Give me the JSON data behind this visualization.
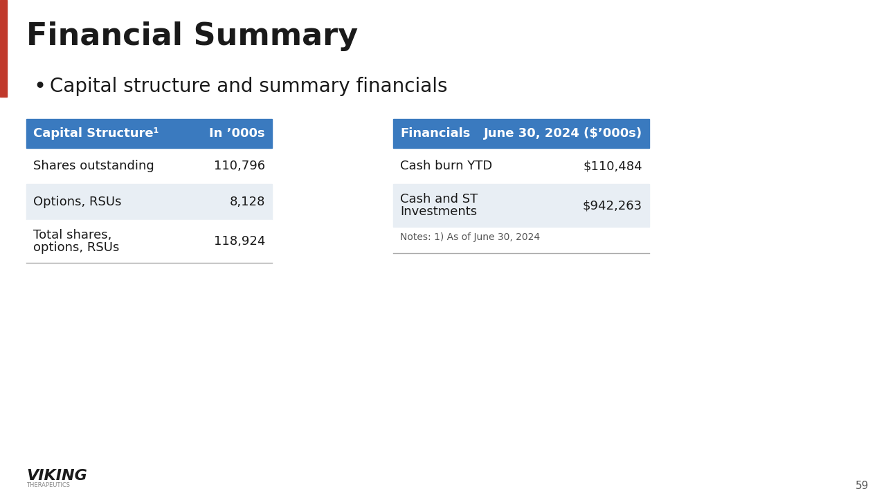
{
  "title": "Financial Summary",
  "bullet": "Capital structure and summary financials",
  "page_number": "59",
  "bg_color": "#FFFFFF",
  "title_color": "#1a1a1a",
  "header_bg": "#3a7abf",
  "header_text_color": "#FFFFFF",
  "row_alt_color": "#e8eef4",
  "row_white": "#FFFFFF",
  "red_accent": "#c0392b",
  "left_table": {
    "headers": [
      "Capital Structure¹",
      "In ’000s"
    ],
    "rows": [
      {
        "label": "Shares outstanding",
        "value": "110,796",
        "alt": false
      },
      {
        "label": "Options, RSUs",
        "value": "8,128",
        "alt": true
      },
      {
        "label": "Total shares,\noptions, RSUs",
        "value": "118,924",
        "alt": false
      }
    ]
  },
  "right_table": {
    "headers": [
      "Financials",
      "June 30, 2024 ($’000s)"
    ],
    "rows": [
      {
        "label": "Cash burn YTD",
        "value": "$110,484",
        "alt": false
      },
      {
        "label": "Cash and ST\nInvestments",
        "value": "$942,263",
        "alt": true
      }
    ],
    "notes": "Notes: 1) As of June 30, 2024"
  },
  "viking_text": "VIKING",
  "sub_text": "THERAPEUTICS"
}
